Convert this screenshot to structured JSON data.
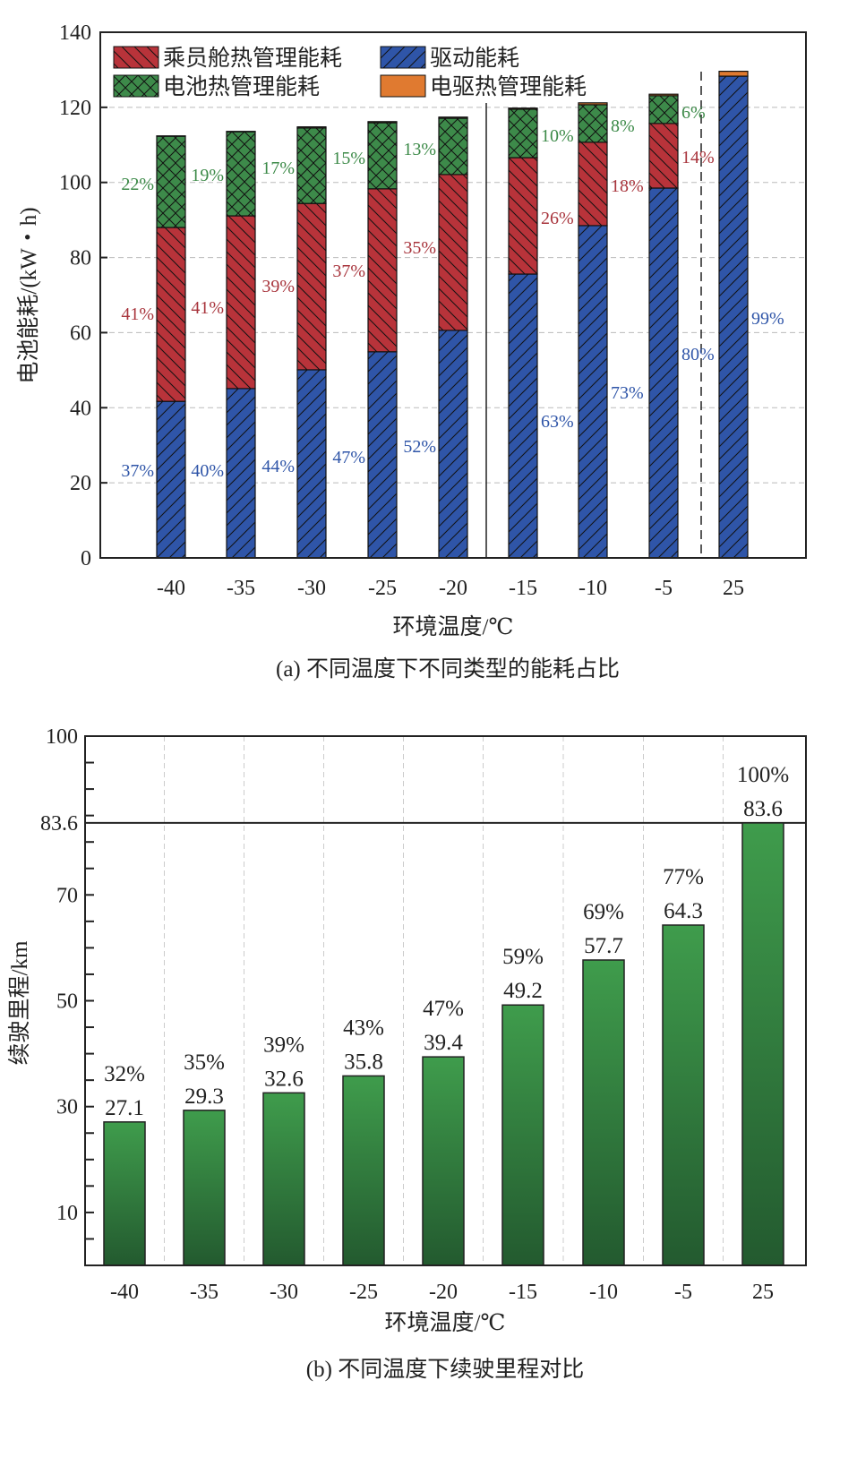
{
  "chart_data": [
    {
      "type": "bar",
      "stacked": true,
      "caption": "(a) 不同温度下不同类型的能耗占比",
      "xlabel": "环境温度/℃",
      "ylabel": "电池能耗/(kW・h)",
      "ylim": [
        0,
        140
      ],
      "yticks": [
        "0",
        "20",
        "40",
        "60",
        "80",
        "100",
        "120",
        "140"
      ],
      "grid": true,
      "legend_position": "top-left",
      "categories": [
        "-40",
        "-35",
        "-30",
        "-25",
        "-20",
        "-15",
        "-10",
        "-5",
        "25"
      ],
      "series": [
        {
          "name": "驱动能耗",
          "color": "#2f55a8",
          "values": [
            41.7,
            45.1,
            50.1,
            54.9,
            60.6,
            75.6,
            88.5,
            98.5,
            128.3
          ],
          "labels": [
            "37%",
            "40%",
            "44%",
            "47%",
            "52%",
            "63%",
            "73%",
            "80%",
            "99%"
          ]
        },
        {
          "name": "乘员舱热管理能耗",
          "color": "#b8333a",
          "values": [
            46.3,
            46.0,
            44.3,
            43.4,
            41.5,
            31.0,
            22.2,
            17.2,
            0
          ],
          "labels": [
            "41%",
            "41%",
            "39%",
            "37%",
            "35%",
            "26%",
            "18%",
            "14%",
            ""
          ]
        },
        {
          "name": "电池热管理能耗",
          "color": "#3d8a4a",
          "values": [
            24.3,
            22.4,
            20.1,
            17.6,
            15.0,
            12.9,
            10.0,
            7.4,
            0
          ],
          "labels": [
            "22%",
            "19%",
            "17%",
            "15%",
            "13%",
            "10%",
            "8%",
            "6%",
            ""
          ]
        },
        {
          "name": "电驱热管理能耗",
          "color": "#e07a30",
          "values": [
            0.1,
            0.1,
            0.3,
            0.3,
            0.3,
            0.3,
            0.5,
            0.4,
            1.3
          ],
          "labels": [
            "",
            "",
            "",
            "",
            "",
            "",
            "",
            "",
            ""
          ]
        }
      ]
    },
    {
      "type": "bar",
      "caption": "(b) 不同温度下续驶里程对比",
      "xlabel": "环境温度/℃",
      "ylabel": "续驶里程/km",
      "ylim": [
        0,
        100
      ],
      "yticks": [
        "10",
        "30",
        "50",
        "70",
        "83.6",
        "100"
      ],
      "reference_line": 83.6,
      "grid": true,
      "categories": [
        "-40",
        "-35",
        "-30",
        "-25",
        "-20",
        "-15",
        "-10",
        "-5",
        "25"
      ],
      "values": [
        27.1,
        29.3,
        32.6,
        35.8,
        39.4,
        49.2,
        57.7,
        64.3,
        83.6
      ],
      "value_labels": [
        "27.1",
        "29.3",
        "32.6",
        "35.8",
        "39.4",
        "49.2",
        "57.7",
        "64.3",
        "83.6"
      ],
      "percent_labels": [
        "32%",
        "35%",
        "39%",
        "43%",
        "47%",
        "59%",
        "69%",
        "77%",
        "100%"
      ]
    }
  ]
}
